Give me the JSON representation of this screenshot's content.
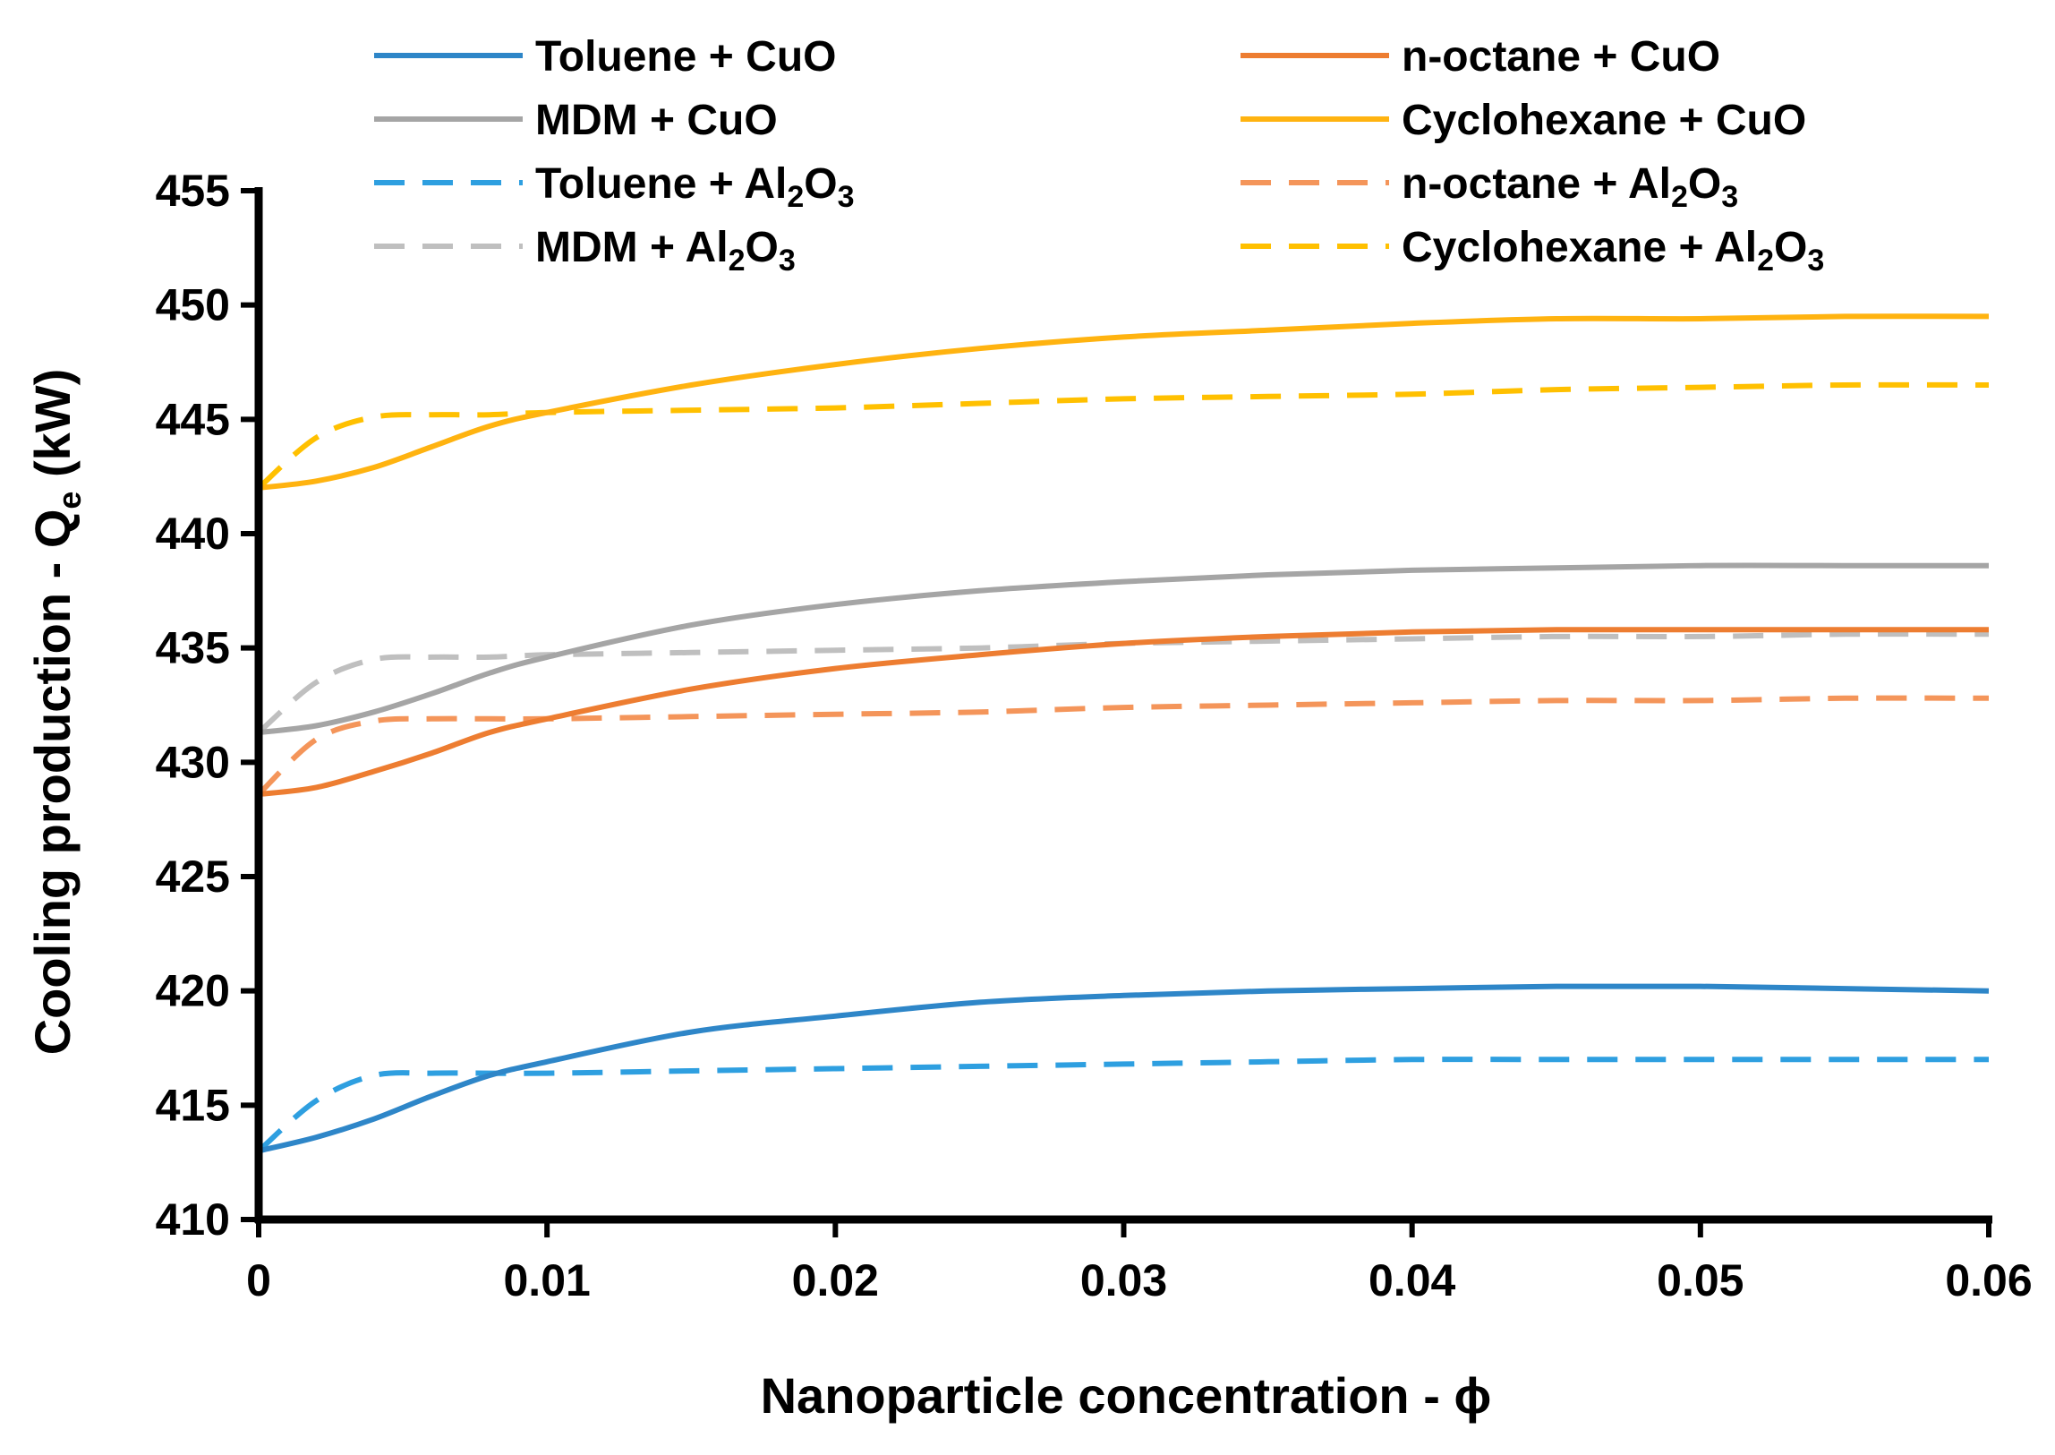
{
  "chart_data": {
    "type": "line",
    "title": "",
    "xlabel": "Nanoparticle concentration - ϕ",
    "ylabel": {
      "main": "Cooling production - Q",
      "sub": "e",
      "unit": " (kW)"
    },
    "xlim": [
      0,
      0.06
    ],
    "ylim": [
      410,
      455
    ],
    "xticks": [
      0,
      0.01,
      0.02,
      0.03,
      0.04,
      0.05,
      0.06
    ],
    "xtick_labels": [
      "0",
      "0.01",
      "0.02",
      "0.03",
      "0.04",
      "0.05",
      "0.06"
    ],
    "yticks": [
      410,
      415,
      420,
      425,
      430,
      435,
      440,
      445,
      450,
      455
    ],
    "ytick_labels": [
      "410",
      "415",
      "420",
      "425",
      "430",
      "435",
      "440",
      "445",
      "450",
      "455"
    ],
    "grid": false,
    "legend_position": "top",
    "x": [
      0,
      0.002,
      0.004,
      0.006,
      0.008,
      0.01,
      0.015,
      0.02,
      0.025,
      0.03,
      0.035,
      0.04,
      0.045,
      0.05,
      0.055,
      0.06
    ],
    "series": [
      {
        "name": "Toluene + CuO",
        "label_parts": [
          "Toluene + CuO"
        ],
        "color": "#2E86C8",
        "dash": "solid",
        "values": [
          413.0,
          413.6,
          414.4,
          415.4,
          416.3,
          416.9,
          418.2,
          418.9,
          419.5,
          419.8,
          420.0,
          420.1,
          420.2,
          420.2,
          420.1,
          420.0
        ]
      },
      {
        "name": "n-octane + CuO",
        "label_parts": [
          "n-octane + CuO"
        ],
        "color": "#ED7D31",
        "dash": "solid",
        "values": [
          428.6,
          428.9,
          429.6,
          430.4,
          431.3,
          431.9,
          433.2,
          434.1,
          434.7,
          435.2,
          435.5,
          435.7,
          435.8,
          435.8,
          435.8,
          435.8
        ]
      },
      {
        "name": "MDM + CuO",
        "label_parts": [
          "MDM + CuO"
        ],
        "color": "#A5A5A5",
        "dash": "solid",
        "values": [
          431.3,
          431.6,
          432.2,
          433.0,
          433.9,
          434.6,
          436.0,
          436.9,
          437.5,
          437.9,
          438.2,
          438.4,
          438.5,
          438.6,
          438.6,
          438.6
        ]
      },
      {
        "name": "Cyclohexane + CuO",
        "label_parts": [
          "Cyclohexane + CuO"
        ],
        "color": "#FFB310",
        "dash": "solid",
        "values": [
          442.0,
          442.3,
          442.9,
          443.8,
          444.7,
          445.3,
          446.5,
          447.4,
          448.1,
          448.6,
          448.9,
          449.2,
          449.4,
          449.4,
          449.5,
          449.5
        ]
      },
      {
        "name": "Toluene + Al2O3",
        "label_parts": [
          "Toluene + Al",
          "2",
          "O",
          "3"
        ],
        "color": "#2E9FE0",
        "dash": "dashed",
        "values": [
          413.0,
          415.2,
          416.3,
          416.4,
          416.4,
          416.4,
          416.5,
          416.6,
          416.7,
          416.8,
          416.9,
          417.0,
          417.0,
          417.0,
          417.0,
          417.0
        ]
      },
      {
        "name": "n-octane + Al2O3",
        "label_parts": [
          "n-octane + Al",
          "2",
          "O",
          "3"
        ],
        "color": "#F4955A",
        "dash": "dashed",
        "values": [
          428.6,
          431.0,
          431.8,
          431.9,
          431.9,
          431.9,
          432.0,
          432.1,
          432.2,
          432.4,
          432.5,
          432.6,
          432.7,
          432.7,
          432.8,
          432.8
        ]
      },
      {
        "name": "MDM + Al2O3",
        "label_parts": [
          "MDM + Al",
          "2",
          "O",
          "3"
        ],
        "color": "#BFBFBF",
        "dash": "dashed",
        "values": [
          431.3,
          433.5,
          434.5,
          434.6,
          434.6,
          434.7,
          434.8,
          434.9,
          435.0,
          435.2,
          435.3,
          435.4,
          435.5,
          435.5,
          435.6,
          435.6
        ]
      },
      {
        "name": "Cyclohexane + Al2O3",
        "label_parts": [
          "Cyclohexane + Al",
          "2",
          "O",
          "3"
        ],
        "color": "#FFC000",
        "dash": "dashed",
        "values": [
          442.0,
          444.2,
          445.1,
          445.2,
          445.2,
          445.3,
          445.4,
          445.5,
          445.7,
          445.9,
          446.0,
          446.1,
          446.3,
          446.4,
          446.5,
          446.5
        ]
      }
    ]
  }
}
